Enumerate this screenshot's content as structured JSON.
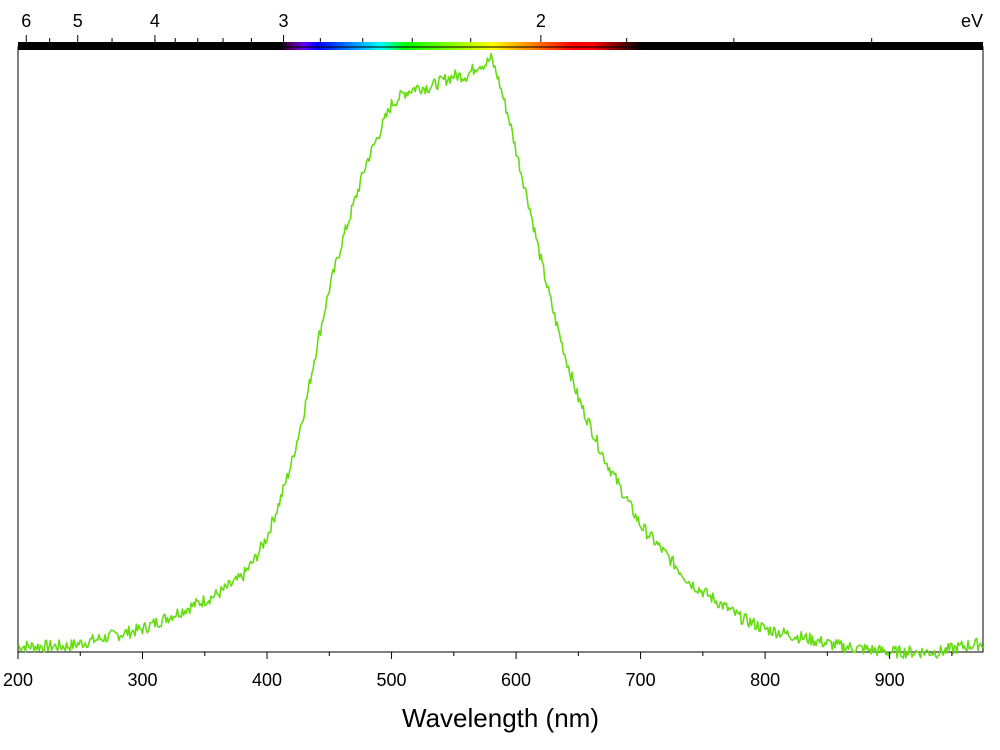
{
  "chart_data": {
    "type": "line",
    "xlabel": "Wavelength (nm)",
    "ylabel": "",
    "xlim": [
      200,
      975
    ],
    "ylim": [
      0,
      1.05
    ],
    "x_ticks": [
      200,
      300,
      400,
      500,
      600,
      700,
      800,
      900
    ],
    "x_tick_labels": [
      "200",
      "300",
      "400",
      "500",
      "600",
      "700",
      "800",
      "900"
    ],
    "ev_axis": {
      "unit_label": "eV",
      "ticks": [
        6,
        5,
        4,
        3,
        2
      ],
      "tick_labels": [
        "6",
        "5",
        "4",
        "3",
        "2"
      ]
    },
    "grid": false,
    "series": [
      {
        "color": "#66dd11",
        "x": [
          200,
          220,
          240,
          260,
          280,
          300,
          320,
          340,
          360,
          380,
          390,
          400,
          410,
          420,
          430,
          440,
          450,
          460,
          470,
          480,
          490,
          500,
          510,
          520,
          530,
          540,
          550,
          560,
          570,
          575,
          580,
          585,
          590,
          595,
          600,
          610,
          620,
          630,
          640,
          650,
          660,
          670,
          680,
          690,
          700,
          720,
          740,
          760,
          780,
          800,
          820,
          840,
          860,
          880,
          900,
          920,
          940,
          960,
          975
        ],
        "y": [
          0.01,
          0.01,
          0.01,
          0.02,
          0.03,
          0.04,
          0.06,
          0.08,
          0.1,
          0.13,
          0.16,
          0.2,
          0.26,
          0.33,
          0.42,
          0.53,
          0.63,
          0.71,
          0.78,
          0.85,
          0.9,
          0.95,
          0.97,
          0.98,
          0.98,
          0.99,
          1.0,
          1.0,
          1.02,
          1.02,
          1.03,
          1.0,
          0.96,
          0.92,
          0.87,
          0.78,
          0.68,
          0.59,
          0.51,
          0.44,
          0.39,
          0.34,
          0.3,
          0.26,
          0.22,
          0.17,
          0.12,
          0.09,
          0.06,
          0.04,
          0.03,
          0.02,
          0.01,
          0.005,
          0.0,
          0.0,
          0.0,
          0.01,
          0.015
        ]
      }
    ]
  }
}
